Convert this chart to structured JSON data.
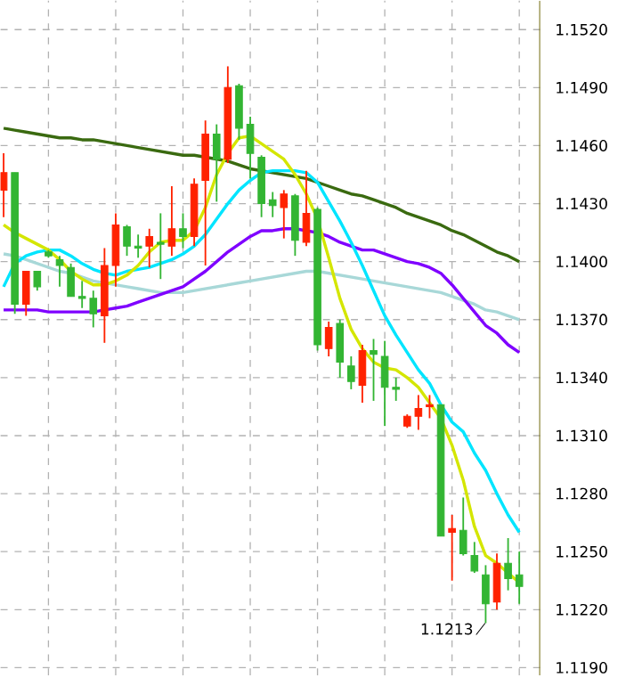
{
  "chart_data": {
    "type": "candlestick",
    "categories": [
      null,
      null,
      null,
      null,
      null,
      null,
      null,
      null,
      null,
      null,
      null,
      null,
      null,
      null,
      null,
      null,
      null,
      null,
      null,
      null,
      null,
      null,
      null,
      null,
      null,
      null,
      null,
      null,
      null,
      null,
      null,
      null,
      null,
      null,
      null,
      null,
      null,
      null,
      null,
      null,
      null,
      null,
      null,
      null,
      null,
      null,
      null
    ],
    "ohlc": [
      [
        1.1437,
        1.1456,
        1.1423,
        1.1446
      ],
      [
        1.1446,
        1.1446,
        1.1373,
        1.1378
      ],
      [
        1.1378,
        1.1395,
        1.1372,
        1.1395
      ],
      [
        1.1395,
        1.1395,
        1.1385,
        1.1387
      ],
      [
        1.1405,
        1.1406,
        1.1402,
        1.1403
      ],
      [
        1.1401,
        1.1403,
        1.1387,
        1.1398
      ],
      [
        1.1397,
        1.1399,
        1.1382,
        1.1382
      ],
      [
        1.1382,
        1.139,
        1.1376,
        1.1381
      ],
      [
        1.1381,
        1.1385,
        1.1366,
        1.1373
      ],
      [
        1.1372,
        1.1407,
        1.1358,
        1.1398
      ],
      [
        1.1398,
        1.1425,
        1.1387,
        1.1419
      ],
      [
        1.1418,
        1.1419,
        1.1403,
        1.1408
      ],
      [
        1.1408,
        1.1414,
        1.1402,
        1.1407
      ],
      [
        1.1408,
        1.1417,
        1.1397,
        1.1413
      ],
      [
        1.141,
        1.1425,
        1.1391,
        1.1409
      ],
      [
        1.1408,
        1.1439,
        1.1403,
        1.1417
      ],
      [
        1.1417,
        1.1425,
        1.1407,
        1.1413
      ],
      [
        1.1413,
        1.1443,
        1.1408,
        1.144
      ],
      [
        1.1442,
        1.1473,
        1.1398,
        1.1466
      ],
      [
        1.1466,
        1.1471,
        1.1431,
        1.1453
      ],
      [
        1.1453,
        1.1501,
        1.1451,
        1.149
      ],
      [
        1.1491,
        1.1492,
        1.1463,
        1.1469
      ],
      [
        1.1471,
        1.1475,
        1.1443,
        1.1456
      ],
      [
        1.1454,
        1.1455,
        1.1423,
        1.143
      ],
      [
        1.1432,
        1.1436,
        1.1423,
        1.1429
      ],
      [
        1.1428,
        1.1437,
        1.1412,
        1.1435
      ],
      [
        1.1434,
        1.1435,
        1.1403,
        1.1411
      ],
      [
        1.141,
        1.1447,
        1.1408,
        1.1425
      ],
      [
        1.1427,
        1.1428,
        1.1354,
        1.1357
      ],
      [
        1.1355,
        1.1369,
        1.1351,
        1.1366
      ],
      [
        1.1368,
        1.137,
        1.134,
        1.1348
      ],
      [
        1.1346,
        1.1351,
        1.1334,
        1.1338
      ],
      [
        1.1336,
        1.1357,
        1.1327,
        1.1354
      ],
      [
        1.1354,
        1.136,
        1.1328,
        1.1352
      ],
      [
        1.1351,
        1.1359,
        1.1315,
        1.1335
      ],
      [
        1.1335,
        1.134,
        1.1328,
        1.1334
      ],
      [
        1.1315,
        1.1321,
        1.1314,
        1.132
      ],
      [
        1.132,
        1.1331,
        1.1313,
        1.1324
      ],
      [
        1.1325,
        1.1331,
        1.1319,
        1.1326
      ],
      [
        1.1326,
        1.1326,
        1.1258,
        1.1258
      ],
      [
        1.126,
        1.1269,
        1.1235,
        1.1262
      ],
      [
        1.1261,
        1.1278,
        1.1248,
        1.1249
      ],
      [
        1.1248,
        1.1255,
        1.1239,
        1.124
      ],
      [
        1.1238,
        1.1243,
        1.1213,
        1.1223
      ],
      [
        1.1224,
        1.1249,
        1.122,
        1.1244
      ],
      [
        1.1244,
        1.1257,
        1.123,
        1.1236
      ],
      [
        1.1238,
        1.125,
        1.1223,
        1.1232
      ]
    ],
    "colors": [
      "#ff2200",
      "#33b533",
      "#ff2200",
      "#33b533",
      "#33b533",
      "#33b533",
      "#33b533",
      "#33b533",
      "#33b533",
      "#ff2200",
      "#ff2200",
      "#33b533",
      "#33b533",
      "#ff2200",
      "#33b533",
      "#ff2200",
      "#33b533",
      "#ff2200",
      "#ff2200",
      "#33b533",
      "#ff2200",
      "#33b533",
      "#33b533",
      "#33b533",
      "#33b533",
      "#ff2200",
      "#33b533",
      "#ff2200",
      "#33b533",
      "#ff2200",
      "#33b533",
      "#33b533",
      "#ff2200",
      "#33b533",
      "#33b533",
      "#33b533",
      "#ff2200",
      "#ff2200",
      "#ff2200",
      "#33b533",
      "#ff2200",
      "#33b533",
      "#33b533",
      "#33b533",
      "#ff2200",
      "#33b533",
      "#33b533"
    ],
    "series": [
      {
        "type": "line",
        "color": "#3a6a10",
        "values": [
          1.1469,
          1.1468,
          1.1467,
          1.1466,
          1.1465,
          1.1464,
          1.1464,
          1.1463,
          1.1463,
          1.1462,
          1.1461,
          1.146,
          1.1459,
          1.1458,
          1.1457,
          1.1456,
          1.1455,
          1.1455,
          1.1454,
          1.1453,
          1.1452,
          1.145,
          1.1448,
          1.1447,
          1.1446,
          1.1445,
          1.1444,
          1.1443,
          1.1441,
          1.1439,
          1.1437,
          1.1435,
          1.1434,
          1.1432,
          1.143,
          1.1428,
          1.1425,
          1.1423,
          1.1421,
          1.1419,
          1.1416,
          1.1414,
          1.1411,
          1.1408,
          1.1405,
          1.1403,
          1.14
        ]
      },
      {
        "type": "line",
        "color": "#a8d8d8",
        "values": [
          1.1404,
          1.1403,
          1.1401,
          1.1399,
          1.1397,
          1.1395,
          1.1394,
          1.1392,
          1.139,
          1.1389,
          1.1388,
          1.1387,
          1.1386,
          1.1385,
          1.1384,
          1.1384,
          1.1384,
          1.1385,
          1.1386,
          1.1387,
          1.1388,
          1.1389,
          1.139,
          1.1391,
          1.1392,
          1.1393,
          1.1394,
          1.1395,
          1.1395,
          1.1394,
          1.1393,
          1.1392,
          1.1391,
          1.139,
          1.1389,
          1.1388,
          1.1387,
          1.1386,
          1.1385,
          1.1384,
          1.1382,
          1.138,
          1.1378,
          1.1375,
          1.1374,
          1.1372,
          1.137
        ]
      },
      {
        "type": "line",
        "color": "#7f00ff",
        "values": [
          1.1375,
          1.1375,
          1.1375,
          1.1375,
          1.1374,
          1.1374,
          1.1374,
          1.1374,
          1.1374,
          1.1375,
          1.1376,
          1.1377,
          1.1379,
          1.1381,
          1.1383,
          1.1385,
          1.1387,
          1.1391,
          1.1395,
          1.14,
          1.1405,
          1.1409,
          1.1413,
          1.1416,
          1.1416,
          1.1417,
          1.1417,
          1.1416,
          1.1415,
          1.1413,
          1.141,
          1.1408,
          1.1406,
          1.1406,
          1.1404,
          1.1402,
          1.14,
          1.1399,
          1.1397,
          1.1394,
          1.1388,
          1.1381,
          1.1374,
          1.1367,
          1.1363,
          1.1357,
          1.1353
        ]
      },
      {
        "type": "line",
        "color": "#00e5ff",
        "values": [
          1.1387,
          1.1399,
          1.1403,
          1.1405,
          1.1406,
          1.1406,
          1.1403,
          1.1399,
          1.1396,
          1.1394,
          1.1393,
          1.1395,
          1.1396,
          1.1397,
          1.1399,
          1.1401,
          1.1404,
          1.1408,
          1.1414,
          1.1422,
          1.143,
          1.1437,
          1.1442,
          1.1446,
          1.1447,
          1.1447,
          1.1447,
          1.1446,
          1.1441,
          1.1431,
          1.1421,
          1.141,
          1.1398,
          1.1385,
          1.1372,
          1.1362,
          1.1353,
          1.1344,
          1.1337,
          1.1326,
          1.1317,
          1.1312,
          1.1301,
          1.1292,
          1.128,
          1.1269,
          1.126
        ]
      },
      {
        "type": "line",
        "color": "#d4e600",
        "values": [
          1.1419,
          1.1415,
          1.1412,
          1.1409,
          1.1406,
          1.1401,
          1.1395,
          1.1391,
          1.1388,
          1.1388,
          1.139,
          1.1393,
          1.1398,
          1.1405,
          1.141,
          1.1411,
          1.1411,
          1.1416,
          1.1428,
          1.1445,
          1.1456,
          1.1464,
          1.1465,
          1.1461,
          1.1457,
          1.1453,
          1.1445,
          1.1435,
          1.1422,
          1.1402,
          1.1381,
          1.1365,
          1.1355,
          1.1348,
          1.1345,
          1.1344,
          1.134,
          1.1335,
          1.1327,
          1.1319,
          1.1305,
          1.1287,
          1.1263,
          1.1248,
          1.1244,
          1.1239,
          1.1234
        ]
      }
    ],
    "ylim": [
      1.1186,
      1.1535
    ],
    "yticks": [
      {
        "value": 1.119,
        "label": "1.1190"
      },
      {
        "value": 1.122,
        "label": "1.1220"
      },
      {
        "value": 1.125,
        "label": "1.1250"
      },
      {
        "value": 1.128,
        "label": "1.1280"
      },
      {
        "value": 1.131,
        "label": "1.1310"
      },
      {
        "value": 1.134,
        "label": "1.1340"
      },
      {
        "value": 1.137,
        "label": "1.1370"
      },
      {
        "value": 1.14,
        "label": "1.1400"
      },
      {
        "value": 1.143,
        "label": "1.1430"
      },
      {
        "value": 1.146,
        "label": "1.1460"
      },
      {
        "value": 1.149,
        "label": "1.1490"
      },
      {
        "value": 1.152,
        "label": "1.1520"
      }
    ],
    "grid": true,
    "tick_labels": "y",
    "annotations": [
      "1.1213"
    ]
  }
}
